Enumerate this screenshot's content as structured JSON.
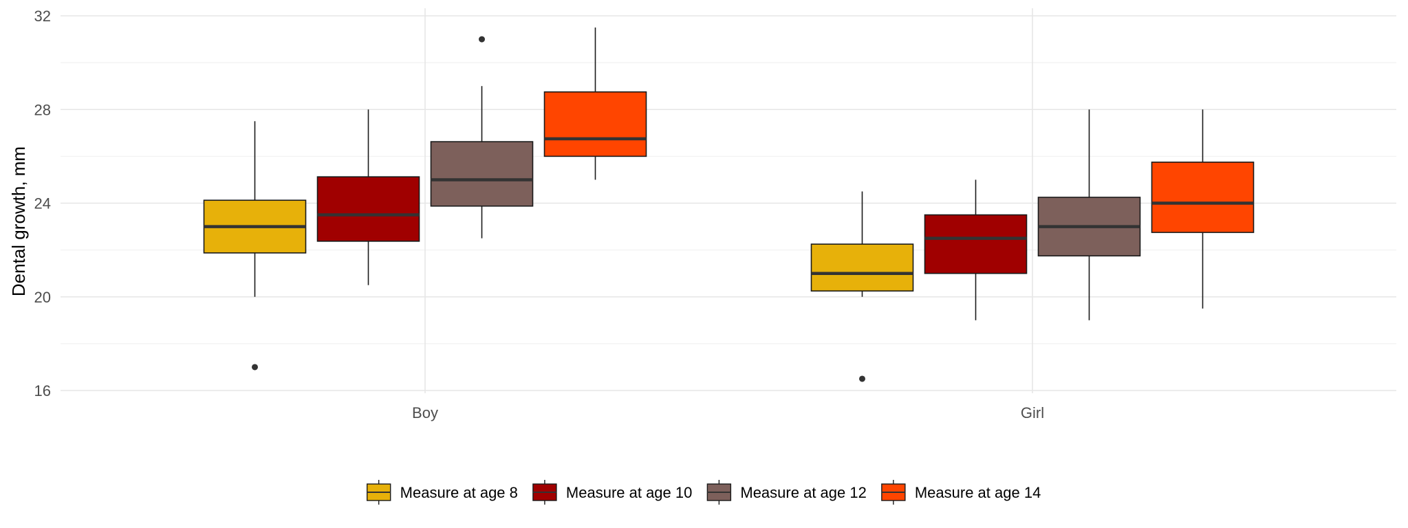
{
  "chart_data": {
    "type": "boxplot",
    "title": "",
    "xlabel": "",
    "ylabel": "Dental growth, mm",
    "ylim": [
      16,
      32
    ],
    "yticks": [
      16,
      20,
      24,
      28,
      32
    ],
    "grid": true,
    "legend_position": "bottom",
    "categories": [
      "Boy",
      "Girl"
    ],
    "series": [
      {
        "name": "Measure at age 8",
        "color": "#E7B10A",
        "boxes": [
          {
            "category": "Boy",
            "min": 20.0,
            "q1": 21.875,
            "median": 23.0,
            "q3": 24.125,
            "max": 27.5,
            "outliers": [
              17.0
            ]
          },
          {
            "category": "Girl",
            "min": 20.0,
            "q1": 20.25,
            "median": 21.0,
            "q3": 22.25,
            "max": 24.5,
            "outliers": [
              16.5
            ]
          }
        ]
      },
      {
        "name": "Measure at age 10",
        "color": "#A00000",
        "boxes": [
          {
            "category": "Boy",
            "min": 20.5,
            "q1": 22.375,
            "median": 23.5,
            "q3": 25.125,
            "max": 28.0,
            "outliers": []
          },
          {
            "category": "Girl",
            "min": 19.0,
            "q1": 21.0,
            "median": 22.5,
            "q3": 23.5,
            "max": 25.0,
            "outliers": []
          }
        ]
      },
      {
        "name": "Measure at age 12",
        "color": "#7D605B",
        "boxes": [
          {
            "category": "Boy",
            "min": 22.5,
            "q1": 23.875,
            "median": 25.0,
            "q3": 26.625,
            "max": 29.0,
            "outliers": [
              31.0
            ]
          },
          {
            "category": "Girl",
            "min": 19.0,
            "q1": 21.75,
            "median": 23.0,
            "q3": 24.25,
            "max": 28.0,
            "outliers": []
          }
        ]
      },
      {
        "name": "Measure at age 14",
        "color": "#FF4500",
        "boxes": [
          {
            "category": "Boy",
            "min": 25.0,
            "q1": 26.0,
            "median": 26.75,
            "q3": 28.75,
            "max": 31.5,
            "outliers": []
          },
          {
            "category": "Girl",
            "min": 19.5,
            "q1": 22.75,
            "median": 24.0,
            "q3": 25.75,
            "max": 28.0,
            "outliers": []
          }
        ]
      }
    ]
  }
}
